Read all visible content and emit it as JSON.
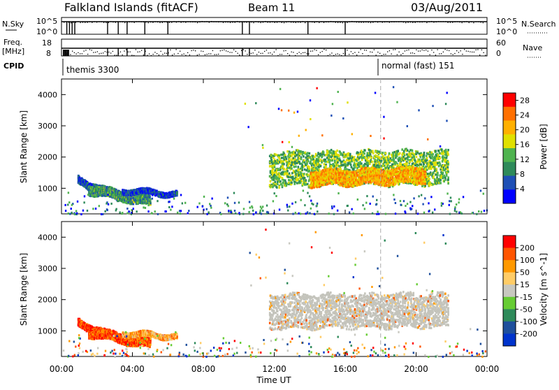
{
  "header": {
    "station": "Falkland Islands (fitACF)",
    "beam": "Beam 11",
    "date": "03/Aug/2011"
  },
  "top_panels": {
    "nsky_label": "N.Sky",
    "nsky_ticks": [
      "10^5",
      "10^0"
    ],
    "nsearch_label": "N.Search",
    "nsearch_ticks": [
      "10^5",
      "10^0"
    ],
    "freq_label": "Freq.",
    "freq_unit": "[MHz]",
    "freq_ticks": [
      "18",
      "8"
    ],
    "nave_label": "Nave",
    "nave_ticks": [
      "60",
      "0"
    ],
    "cpid_label": "CPID",
    "cpid_segments": [
      {
        "text": "themis 3300",
        "start_hour": 0.0
      },
      {
        "text": "normal (fast) 151",
        "start_hour": 18.0
      }
    ],
    "nsky_drop_hours": [
      0.3,
      0.45,
      0.6,
      0.75,
      2.6,
      3.2,
      3.7,
      4.7,
      6.0,
      10.2,
      10.6,
      13.9,
      16.0
    ],
    "freq_drop_hours": [
      2.6,
      3.2,
      3.7,
      4.7,
      6.0,
      10.2,
      10.6,
      13.9,
      16.0
    ]
  },
  "chart_data": [
    {
      "type": "heatmap",
      "name": "power",
      "xlabel": "Time UT",
      "ylabel": "Slant Range [km]",
      "xlim": [
        0,
        24
      ],
      "ylim": [
        180,
        4500
      ],
      "x_ticks": [
        "00:00",
        "04:00",
        "08:00",
        "12:00",
        "16:00",
        "20:00",
        "00:00"
      ],
      "y_ticks": [
        1000,
        2000,
        3000,
        4000
      ],
      "colorbar": {
        "label": "Power [dB]",
        "ticks": [
          "4",
          "8",
          "12",
          "16",
          "20",
          "24",
          "28"
        ],
        "range": [
          0,
          30
        ]
      },
      "scatter_regions": [
        {
          "t_start": 0.9,
          "t_end": 3.2,
          "r_start": 1300,
          "r_end": 750,
          "thickness": 120,
          "level": 0.2
        },
        {
          "t_start": 1.5,
          "t_end": 5.0,
          "r_start": 1000,
          "r_end": 600,
          "thickness": 150,
          "level": 0.35
        },
        {
          "t_start": 3.4,
          "t_end": 6.5,
          "r_start": 950,
          "r_end": 850,
          "thickness": 80,
          "level": 0.15
        },
        {
          "t_start": 11.7,
          "t_end": 21.8,
          "r_start": 1650,
          "r_end": 1700,
          "thickness": 550,
          "level": 0.45
        },
        {
          "t_start": 14.0,
          "t_end": 20.5,
          "r_start": 1350,
          "r_end": 1450,
          "thickness": 250,
          "level": 0.7
        }
      ]
    },
    {
      "type": "heatmap",
      "name": "velocity",
      "xlabel": "Time UT",
      "ylabel": "Slant Range [km]",
      "xlim": [
        0,
        24
      ],
      "ylim": [
        180,
        4500
      ],
      "x_ticks": [
        "00:00",
        "04:00",
        "08:00",
        "12:00",
        "16:00",
        "20:00",
        "00:00"
      ],
      "y_ticks": [
        1000,
        2000,
        3000,
        4000
      ],
      "colorbar": {
        "label": "Velocity [m s^-1]",
        "ticks": [
          "200",
          "100",
          "50",
          "15",
          "-15",
          "-50",
          "-100",
          "-200"
        ]
      },
      "scatter_regions": [
        {
          "t_start": 0.9,
          "t_end": 3.2,
          "r_start": 1300,
          "r_end": 750,
          "thickness": 120,
          "level": 0.9
        },
        {
          "t_start": 1.5,
          "t_end": 5.0,
          "r_start": 1000,
          "r_end": 600,
          "thickness": 150,
          "level": 0.85
        },
        {
          "t_start": 3.4,
          "t_end": 6.5,
          "r_start": 950,
          "r_end": 850,
          "thickness": 80,
          "level": 0.7
        },
        {
          "t_start": 11.7,
          "t_end": 21.8,
          "r_start": 1650,
          "r_end": 1700,
          "thickness": 550,
          "level": 0.5
        }
      ]
    }
  ],
  "colors": {
    "power_scale": [
      "#0000ff",
      "#1e4fb5",
      "#2e8a5a",
      "#4fb34f",
      "#e0e000",
      "#ffb000",
      "#ff7000",
      "#ff0000"
    ],
    "velocity_scale": [
      "#0033cc",
      "#1e4f9c",
      "#2e8a5a",
      "#66cc33",
      "#c8c8c0",
      "#ffcc66",
      "#ff9900",
      "#ff5500",
      "#ff0000"
    ],
    "ground_scatter": "#808080"
  }
}
